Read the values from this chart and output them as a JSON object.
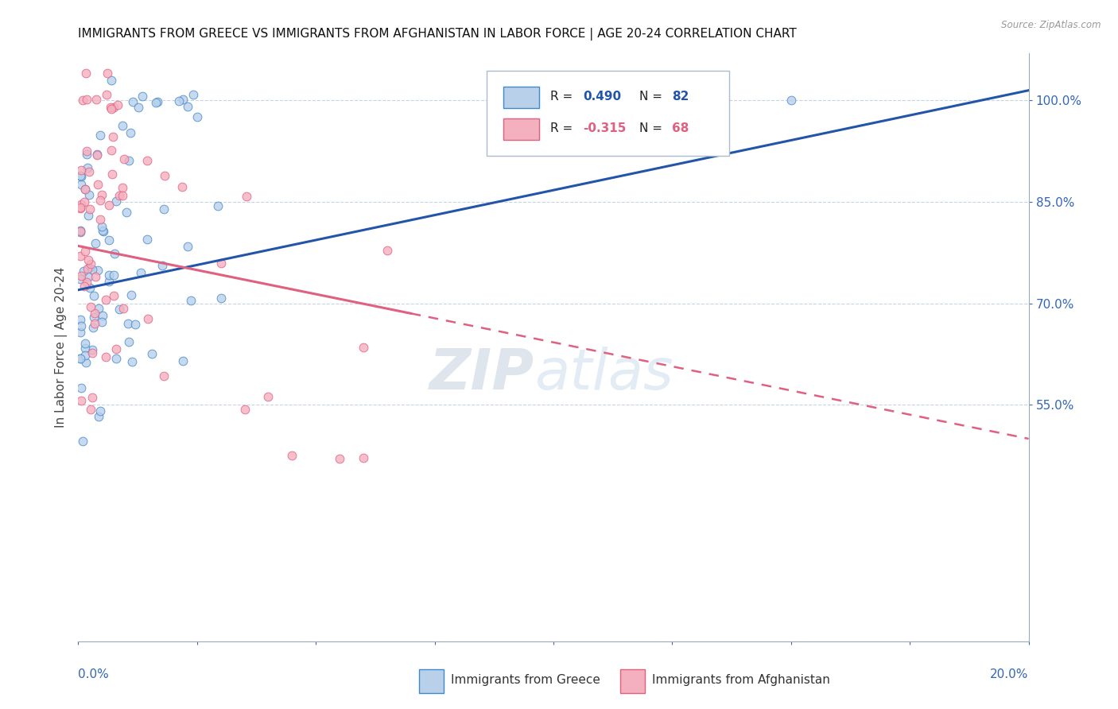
{
  "title": "IMMIGRANTS FROM GREECE VS IMMIGRANTS FROM AFGHANISTAN IN LABOR FORCE | AGE 20-24 CORRELATION CHART",
  "source": "Source: ZipAtlas.com",
  "ylabel_label": "In Labor Force | Age 20-24",
  "xmin": 0.0,
  "xmax": 20.0,
  "ymin": 20.0,
  "ymax": 107.0,
  "yticks": [
    55.0,
    70.0,
    85.0,
    100.0
  ],
  "legend_r_greece": "0.490",
  "legend_n_greece": "82",
  "legend_r_afghanistan": "-0.315",
  "legend_n_afghanistan": "68",
  "greece_fill_color": "#b8d0ea",
  "greece_edge_color": "#4488cc",
  "afghanistan_fill_color": "#f5b0c0",
  "afghanistan_edge_color": "#e06080",
  "greece_line_color": "#2255aa",
  "afghanistan_line_color": "#e06080",
  "watermark_zip": "ZIP",
  "watermark_atlas": "atlas",
  "greece_line_x0": 0.0,
  "greece_line_y0": 72.0,
  "greece_line_x1": 20.0,
  "greece_line_y1": 101.5,
  "afghanistan_line_x0": 0.0,
  "afghanistan_line_y0": 78.5,
  "afghanistan_line_x1": 20.0,
  "afghanistan_line_y1": 50.0,
  "afghanistan_solid_x_end": 7.0,
  "n_greece": 82,
  "n_afghanistan": 68,
  "seed": 99
}
